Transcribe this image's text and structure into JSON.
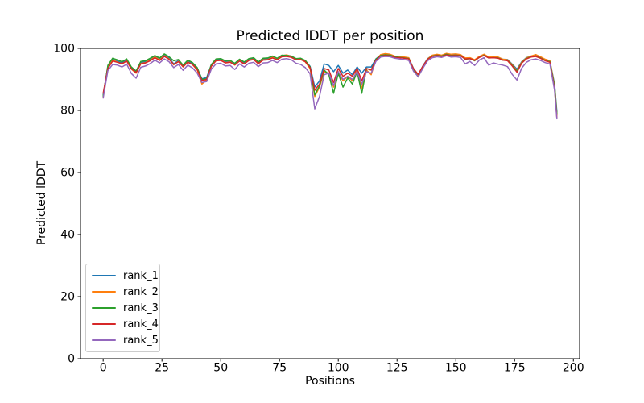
{
  "figure": {
    "background": "#ffffff"
  },
  "chart_data": {
    "type": "line",
    "title": "Predicted lDDT per position",
    "xlabel": "Positions",
    "ylabel": "Predicted lDDT",
    "xlim": [
      -9.65,
      202.65
    ],
    "ylim": [
      0,
      100
    ],
    "xticks": [
      0,
      25,
      50,
      75,
      100,
      125,
      150,
      175,
      200
    ],
    "yticks": [
      0,
      20,
      40,
      60,
      80,
      100
    ],
    "grid": false,
    "legend_position": "lower left",
    "axis_color": "#000000",
    "x": [
      0,
      2,
      4,
      6,
      8,
      10,
      12,
      14,
      16,
      18,
      20,
      22,
      24,
      26,
      28,
      30,
      32,
      34,
      36,
      38,
      40,
      42,
      44,
      46,
      48,
      50,
      52,
      54,
      56,
      58,
      60,
      62,
      64,
      66,
      68,
      70,
      72,
      74,
      76,
      78,
      80,
      82,
      84,
      86,
      88,
      90,
      92,
      94,
      96,
      98,
      100,
      102,
      104,
      106,
      108,
      110,
      112,
      114,
      116,
      118,
      120,
      122,
      124,
      126,
      128,
      130,
      132,
      134,
      136,
      138,
      140,
      142,
      144,
      146,
      148,
      150,
      152,
      154,
      156,
      158,
      160,
      162,
      164,
      166,
      168,
      170,
      172,
      174,
      176,
      178,
      180,
      182,
      184,
      186,
      188,
      190,
      192,
      193
    ],
    "series": [
      {
        "name": "rank_1",
        "color": "#1f77b4",
        "values": [
          85.0,
          94.2,
          96.4,
          95.9,
          95.3,
          96.3,
          93.7,
          92.5,
          95.4,
          95.7,
          96.4,
          97.5,
          96.5,
          97.8,
          96.9,
          95.0,
          96.1,
          94.4,
          95.9,
          95.1,
          93.6,
          90.2,
          90.6,
          94.7,
          96.4,
          96.5,
          95.7,
          95.9,
          95.0,
          96.3,
          95.3,
          96.5,
          96.8,
          95.3,
          96.6,
          96.6,
          97.3,
          96.6,
          97.7,
          97.8,
          97.5,
          96.6,
          96.7,
          96.0,
          94.2,
          87.5,
          89.5,
          95.0,
          94.5,
          92.5,
          94.5,
          92.0,
          93.0,
          91.5,
          94.0,
          92.0,
          94.0,
          94.0,
          96.6,
          97.8,
          98.0,
          97.9,
          97.4,
          97.3,
          97.1,
          96.9,
          93.5,
          91.5,
          94.4,
          96.7,
          97.7,
          98.0,
          97.7,
          98.2,
          97.9,
          98.0,
          97.9,
          96.8,
          96.9,
          96.2,
          97.3,
          98.0,
          97.1,
          97.2,
          97.1,
          96.5,
          96.4,
          94.9,
          93.3,
          95.7,
          97.0,
          97.5,
          97.7,
          97.1,
          96.3,
          95.9,
          88.5,
          79.5
        ]
      },
      {
        "name": "rank_2",
        "color": "#ff7f0e",
        "values": [
          84.3,
          93.8,
          96.2,
          95.6,
          94.9,
          96.0,
          93.3,
          92.0,
          95.1,
          95.4,
          96.2,
          97.2,
          96.3,
          97.6,
          96.6,
          94.7,
          95.8,
          94.0,
          95.6,
          94.7,
          93.0,
          88.5,
          89.8,
          94.3,
          96.1,
          96.2,
          95.4,
          95.6,
          94.6,
          96.0,
          95.0,
          96.2,
          96.5,
          95.0,
          96.3,
          96.4,
          97.1,
          96.4,
          97.6,
          97.9,
          97.4,
          96.4,
          96.5,
          95.6,
          93.5,
          84.5,
          87.5,
          92.5,
          92.0,
          87.5,
          92.5,
          89.5,
          91.0,
          89.5,
          93.0,
          87.0,
          93.0,
          91.5,
          96.3,
          98.0,
          98.3,
          98.1,
          97.5,
          97.4,
          97.2,
          97.0,
          93.2,
          91.0,
          94.1,
          96.6,
          97.8,
          98.1,
          97.8,
          98.4,
          98.1,
          98.2,
          98.0,
          96.9,
          97.0,
          96.3,
          97.4,
          98.1,
          97.2,
          97.3,
          97.2,
          96.5,
          96.3,
          94.7,
          92.9,
          95.5,
          96.9,
          97.5,
          98.0,
          97.3,
          96.5,
          96.0,
          88.0,
          78.5
        ]
      },
      {
        "name": "rank_3",
        "color": "#2ca02c",
        "values": [
          84.6,
          94.5,
          96.8,
          96.3,
          95.7,
          96.6,
          94.0,
          92.7,
          95.8,
          96.0,
          96.8,
          97.7,
          96.9,
          98.2,
          97.3,
          96.0,
          96.4,
          94.6,
          96.2,
          95.4,
          93.8,
          90.0,
          90.2,
          94.8,
          96.6,
          96.7,
          96.0,
          96.1,
          95.2,
          96.5,
          95.6,
          96.7,
          97.0,
          95.6,
          96.8,
          96.9,
          97.5,
          96.8,
          97.8,
          97.7,
          97.5,
          96.7,
          96.8,
          96.1,
          94.0,
          85.0,
          88.0,
          93.0,
          91.5,
          85.5,
          92.0,
          87.5,
          90.5,
          88.5,
          92.5,
          85.5,
          93.5,
          93.0,
          96.5,
          97.7,
          97.9,
          97.8,
          97.3,
          97.1,
          96.9,
          96.7,
          93.0,
          90.8,
          93.9,
          96.5,
          97.5,
          97.8,
          97.5,
          98.1,
          97.7,
          97.8,
          97.7,
          96.5,
          96.7,
          96.0,
          97.1,
          97.8,
          96.9,
          97.0,
          96.9,
          96.2,
          96.1,
          94.5,
          92.7,
          95.3,
          96.7,
          97.3,
          97.5,
          96.9,
          96.1,
          95.7,
          87.8,
          78.8
        ]
      },
      {
        "name": "rank_4",
        "color": "#d62728",
        "values": [
          85.5,
          93.5,
          95.9,
          95.5,
          95.1,
          95.9,
          93.4,
          92.2,
          95.0,
          95.3,
          96.0,
          97.0,
          96.1,
          97.4,
          96.5,
          94.8,
          95.7,
          94.1,
          95.5,
          94.8,
          93.2,
          89.6,
          90.0,
          94.2,
          96.0,
          96.1,
          95.3,
          95.5,
          94.7,
          95.9,
          95.0,
          96.1,
          96.4,
          95.1,
          96.2,
          96.3,
          96.9,
          96.3,
          97.3,
          97.4,
          97.1,
          96.3,
          96.4,
          95.7,
          93.8,
          86.5,
          88.5,
          93.5,
          93.0,
          89.0,
          93.5,
          91.0,
          92.0,
          91.0,
          93.5,
          89.5,
          93.5,
          93.0,
          96.2,
          97.5,
          97.7,
          97.6,
          97.1,
          97.0,
          96.8,
          96.6,
          93.4,
          91.6,
          94.3,
          96.5,
          97.4,
          97.7,
          97.4,
          97.9,
          97.6,
          97.7,
          97.6,
          96.6,
          96.7,
          96.1,
          97.1,
          97.7,
          96.9,
          97.0,
          96.8,
          96.2,
          96.0,
          94.3,
          92.3,
          95.2,
          96.6,
          97.2,
          97.4,
          96.8,
          96.0,
          95.5,
          87.0,
          77.6
        ]
      },
      {
        "name": "rank_5",
        "color": "#9467bd",
        "values": [
          84.0,
          92.8,
          94.8,
          94.6,
          94.0,
          94.9,
          91.9,
          90.4,
          93.9,
          94.3,
          95.1,
          96.2,
          95.3,
          96.6,
          95.7,
          93.8,
          94.8,
          92.9,
          94.6,
          93.7,
          92.0,
          89.0,
          89.3,
          93.3,
          95.0,
          95.2,
          94.3,
          94.5,
          93.2,
          95.0,
          94.0,
          95.2,
          95.5,
          94.1,
          95.3,
          95.4,
          96.1,
          95.4,
          96.5,
          96.7,
          96.3,
          95.2,
          94.8,
          93.8,
          91.8,
          80.5,
          84.5,
          91.5,
          92.0,
          88.0,
          92.5,
          90.0,
          91.0,
          90.0,
          92.5,
          88.5,
          92.5,
          92.0,
          95.8,
          97.2,
          97.4,
          97.3,
          96.8,
          96.6,
          96.4,
          96.1,
          92.6,
          90.9,
          93.6,
          96.0,
          97.0,
          97.3,
          97.1,
          97.6,
          97.2,
          97.3,
          97.1,
          95.0,
          95.8,
          94.5,
          96.2,
          97.0,
          94.6,
          95.3,
          94.9,
          94.6,
          94.1,
          91.6,
          89.8,
          93.6,
          95.5,
          96.3,
          96.6,
          96.1,
          95.4,
          95.0,
          86.5,
          77.3
        ]
      }
    ]
  }
}
